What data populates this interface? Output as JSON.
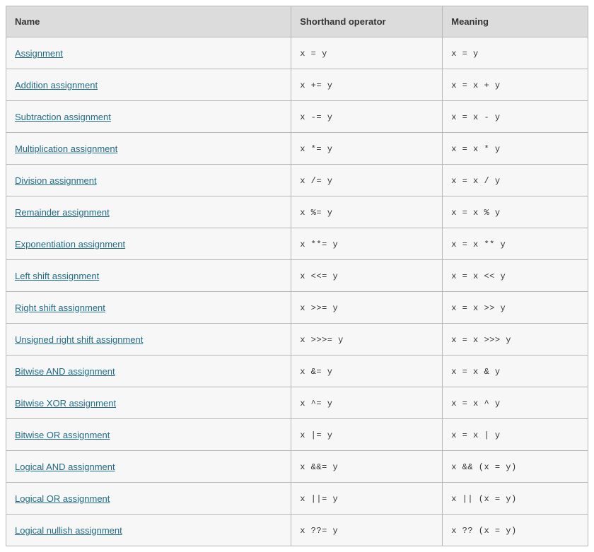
{
  "table": {
    "columns": [
      "Name",
      "Shorthand operator",
      "Meaning"
    ],
    "column_widths": [
      "49%",
      "26%",
      "25%"
    ],
    "header_bg": "#dcdcdc",
    "row_bg": "#f7f7f7",
    "border_color": "#b7b7b7",
    "link_color": "#216c87",
    "font_family_body": "Arial, Helvetica, sans-serif",
    "font_family_code": "Consolas, Menlo, Courier New, monospace",
    "font_size_body": 13,
    "font_size_code": 12,
    "rows": [
      {
        "name": "Assignment",
        "shorthand": "x = y",
        "meaning": "x = y"
      },
      {
        "name": "Addition assignment",
        "shorthand": "x += y",
        "meaning": "x = x + y"
      },
      {
        "name": "Subtraction assignment",
        "shorthand": "x -= y",
        "meaning": "x = x - y"
      },
      {
        "name": "Multiplication assignment",
        "shorthand": "x *= y",
        "meaning": "x = x * y"
      },
      {
        "name": "Division assignment",
        "shorthand": "x /= y",
        "meaning": "x = x / y"
      },
      {
        "name": "Remainder assignment",
        "shorthand": "x %= y",
        "meaning": "x = x % y"
      },
      {
        "name": "Exponentiation assignment",
        "shorthand": "x **= y",
        "meaning": "x = x ** y"
      },
      {
        "name": "Left shift assignment",
        "shorthand": "x <<= y",
        "meaning": "x = x << y"
      },
      {
        "name": "Right shift assignment",
        "shorthand": "x >>= y",
        "meaning": "x = x >> y"
      },
      {
        "name": "Unsigned right shift assignment",
        "shorthand": "x >>>= y",
        "meaning": "x = x >>> y"
      },
      {
        "name": "Bitwise AND assignment",
        "shorthand": "x &= y",
        "meaning": "x = x & y"
      },
      {
        "name": "Bitwise XOR assignment",
        "shorthand": "x ^= y",
        "meaning": "x = x ^ y"
      },
      {
        "name": "Bitwise OR assignment",
        "shorthand": "x |= y",
        "meaning": "x = x | y"
      },
      {
        "name": "Logical AND assignment",
        "shorthand": "x &&= y",
        "meaning": "x && (x = y)"
      },
      {
        "name": "Logical OR assignment",
        "shorthand": "x ||= y",
        "meaning": "x || (x = y)"
      },
      {
        "name": "Logical nullish assignment",
        "shorthand": "x ??= y",
        "meaning": "x ?? (x = y)"
      }
    ]
  }
}
